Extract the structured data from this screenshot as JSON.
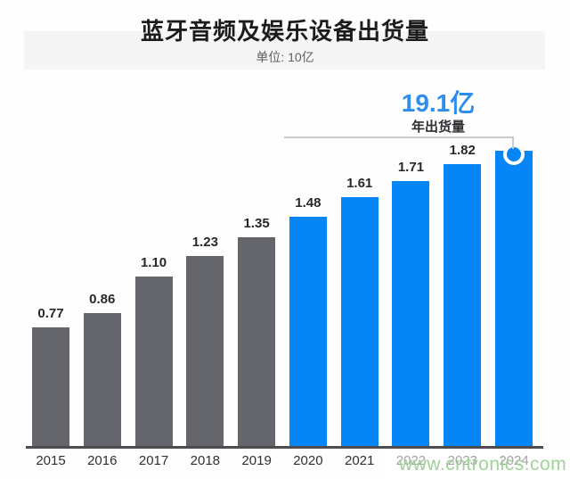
{
  "title": "蓝牙音频及娱乐设备出货量",
  "subtitle": "单位: 10亿",
  "annotation": {
    "value": "19.1亿",
    "label": "年出货量"
  },
  "watermark": "www.cntronics.com",
  "colors": {
    "bar_historical": "#65666b",
    "bar_recent": "#0585f6",
    "annotation_value": "#2e8eee",
    "bracket": "#cbcbcb",
    "axis": "#4d4d50",
    "value_label": "#28282c",
    "year_label": "#303034",
    "watermark": "#9ad092"
  },
  "chart_data": {
    "type": "bar",
    "title": "蓝牙音频及娱乐设备出货量",
    "unit": "单位: 10亿",
    "categories": [
      "2015",
      "2016",
      "2017",
      "2018",
      "2019",
      "2020",
      "2021",
      "2022",
      "2023",
      "2024"
    ],
    "values": [
      0.77,
      0.86,
      1.1,
      1.23,
      1.35,
      1.48,
      1.61,
      1.71,
      1.82,
      1.91
    ],
    "color_split_index": 5,
    "highlight_index": 9,
    "highlight_callout": "19.1亿",
    "highlight_callout_sub": "年出货量",
    "value_label_decimals": 2,
    "hide_value_label_on_highlight": true,
    "ylim": [
      0,
      2.0
    ],
    "grid": false,
    "legend": "none",
    "xlabel": "",
    "ylabel": ""
  }
}
